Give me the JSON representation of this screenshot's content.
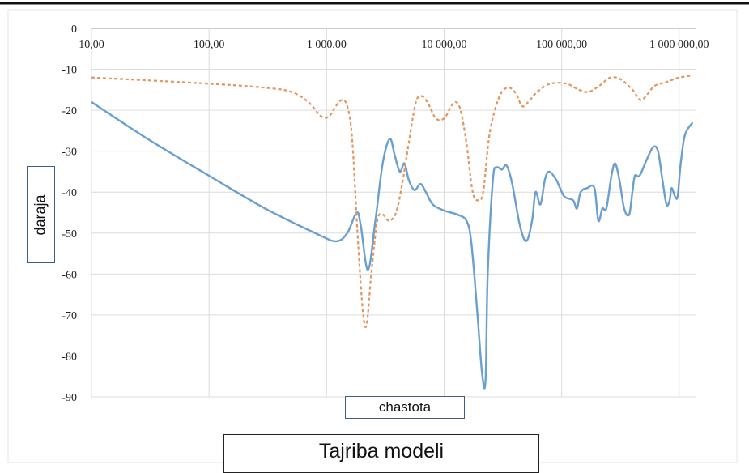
{
  "chart_data": {
    "type": "line",
    "x_scale": "log",
    "xlim": [
      10,
      1400000
    ],
    "ylim": [
      -90,
      0
    ],
    "grid": true,
    "xlabel": "chastota",
    "ylabel": "daraja",
    "caption": "Tajriba modeli",
    "x_tick_values": [
      10,
      100,
      1000,
      10000,
      100000,
      1000000
    ],
    "x_tick_labels": [
      "10,00",
      "100,00",
      "1 000,00",
      "10 000,00",
      "100 000,00",
      "1 000 000,00"
    ],
    "y_tick_values": [
      0,
      -10,
      -20,
      -30,
      -40,
      -50,
      -60,
      -70,
      -80,
      -90
    ],
    "y_tick_labels": [
      "0",
      "-10",
      "-20",
      "-30",
      "-40",
      "-50",
      "-60",
      "-70",
      "-80",
      "-90"
    ],
    "series": [
      {
        "style": "solid",
        "color": "#6a9fcf",
        "points": [
          [
            10,
            -18
          ],
          [
            30,
            -27
          ],
          [
            100,
            -36
          ],
          [
            300,
            -44
          ],
          [
            800,
            -50
          ],
          [
            1200,
            -52
          ],
          [
            1500,
            -50
          ],
          [
            1800,
            -45
          ],
          [
            1950,
            -48
          ],
          [
            2250,
            -59
          ],
          [
            2600,
            -47
          ],
          [
            3000,
            -33
          ],
          [
            3450,
            -27
          ],
          [
            3800,
            -31
          ],
          [
            4200,
            -35
          ],
          [
            4600,
            -33
          ],
          [
            5000,
            -37
          ],
          [
            5600,
            -39.5
          ],
          [
            6300,
            -38
          ],
          [
            7000,
            -40
          ],
          [
            8000,
            -43
          ],
          [
            10000,
            -44.5
          ],
          [
            13000,
            -45.5
          ],
          [
            15500,
            -47
          ],
          [
            17000,
            -52
          ],
          [
            19000,
            -68
          ],
          [
            21000,
            -84
          ],
          [
            22500,
            -86
          ],
          [
            23500,
            -60
          ],
          [
            26000,
            -37
          ],
          [
            28000,
            -34
          ],
          [
            31000,
            -34.5
          ],
          [
            34000,
            -33.5
          ],
          [
            38000,
            -38
          ],
          [
            44000,
            -48
          ],
          [
            50000,
            -52
          ],
          [
            56000,
            -47
          ],
          [
            60000,
            -40
          ],
          [
            66000,
            -43
          ],
          [
            72000,
            -37
          ],
          [
            78000,
            -35
          ],
          [
            90000,
            -37
          ],
          [
            105000,
            -41
          ],
          [
            125000,
            -42
          ],
          [
            135000,
            -44
          ],
          [
            145000,
            -40
          ],
          [
            165000,
            -39
          ],
          [
            190000,
            -39
          ],
          [
            205000,
            -47
          ],
          [
            222000,
            -44
          ],
          [
            240000,
            -44
          ],
          [
            265000,
            -36
          ],
          [
            285000,
            -33
          ],
          [
            310000,
            -37
          ],
          [
            340000,
            -44
          ],
          [
            375000,
            -45.5
          ],
          [
            400000,
            -40
          ],
          [
            420000,
            -36
          ],
          [
            460000,
            -36
          ],
          [
            530000,
            -32
          ],
          [
            600000,
            -29
          ],
          [
            660000,
            -30
          ],
          [
            720000,
            -37
          ],
          [
            780000,
            -43
          ],
          [
            830000,
            -42
          ],
          [
            860000,
            -39
          ],
          [
            920000,
            -41
          ],
          [
            970000,
            -41
          ],
          [
            1030000,
            -33
          ],
          [
            1120000,
            -26
          ],
          [
            1300000,
            -23
          ]
        ]
      },
      {
        "style": "dashed",
        "color": "#e2955e",
        "points": [
          [
            10,
            -12
          ],
          [
            100,
            -13.5
          ],
          [
            300,
            -14.5
          ],
          [
            500,
            -15.5
          ],
          [
            700,
            -18
          ],
          [
            900,
            -21.5
          ],
          [
            1050,
            -21.5
          ],
          [
            1200,
            -19
          ],
          [
            1350,
            -17.5
          ],
          [
            1500,
            -19
          ],
          [
            1650,
            -27
          ],
          [
            1850,
            -52
          ],
          [
            2050,
            -70
          ],
          [
            2200,
            -72
          ],
          [
            2400,
            -60
          ],
          [
            2700,
            -47
          ],
          [
            3000,
            -45.5
          ],
          [
            3400,
            -47
          ],
          [
            3900,
            -45
          ],
          [
            4400,
            -38
          ],
          [
            5000,
            -28
          ],
          [
            5700,
            -18.5
          ],
          [
            6300,
            -16.5
          ],
          [
            7200,
            -18
          ],
          [
            8500,
            -22
          ],
          [
            10000,
            -22
          ],
          [
            11500,
            -19
          ],
          [
            12600,
            -18
          ],
          [
            13800,
            -20
          ],
          [
            15500,
            -28
          ],
          [
            17500,
            -40
          ],
          [
            19500,
            -42
          ],
          [
            21500,
            -40
          ],
          [
            24000,
            -27
          ],
          [
            27000,
            -20
          ],
          [
            31000,
            -15.5
          ],
          [
            36000,
            -14.5
          ],
          [
            41000,
            -16
          ],
          [
            46000,
            -19
          ],
          [
            52000,
            -18
          ],
          [
            62000,
            -15.5
          ],
          [
            80000,
            -13.5
          ],
          [
            110000,
            -13.5
          ],
          [
            140000,
            -15
          ],
          [
            170000,
            -15.5
          ],
          [
            210000,
            -14
          ],
          [
            260000,
            -12
          ],
          [
            320000,
            -12.5
          ],
          [
            400000,
            -15
          ],
          [
            470000,
            -17.5
          ],
          [
            540000,
            -16
          ],
          [
            620000,
            -14
          ],
          [
            800000,
            -13
          ],
          [
            1000000,
            -12
          ],
          [
            1300000,
            -11.5
          ]
        ]
      }
    ]
  }
}
